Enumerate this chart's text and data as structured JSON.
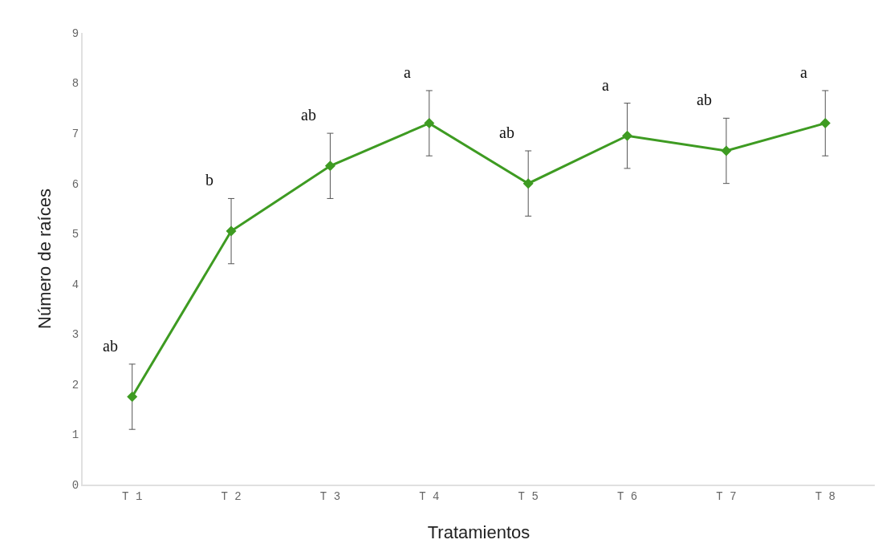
{
  "chart_data": {
    "type": "line",
    "xlabel": "Tratamientos",
    "ylabel": "Número de raíces",
    "categories": [
      "T 1",
      "T 2",
      "T 3",
      "T 4",
      "T 5",
      "T 6",
      "T 7",
      "T 8"
    ],
    "series": [
      {
        "color": "#3e9b22",
        "values": [
          1.75,
          5.05,
          6.35,
          7.2,
          6.0,
          6.95,
          6.65,
          7.2
        ],
        "errors": [
          0.65,
          0.65,
          0.65,
          0.65,
          0.65,
          0.65,
          0.65,
          0.65
        ]
      }
    ],
    "ylim": [
      0,
      9
    ],
    "yticks": [
      0,
      1,
      2,
      3,
      4,
      5,
      6,
      7,
      8,
      9
    ],
    "grid": false,
    "marker": "diamond",
    "line_style": "solid",
    "annotations": [
      "ab",
      "b",
      "ab",
      "a",
      "ab",
      "a",
      "ab",
      "a"
    ]
  }
}
